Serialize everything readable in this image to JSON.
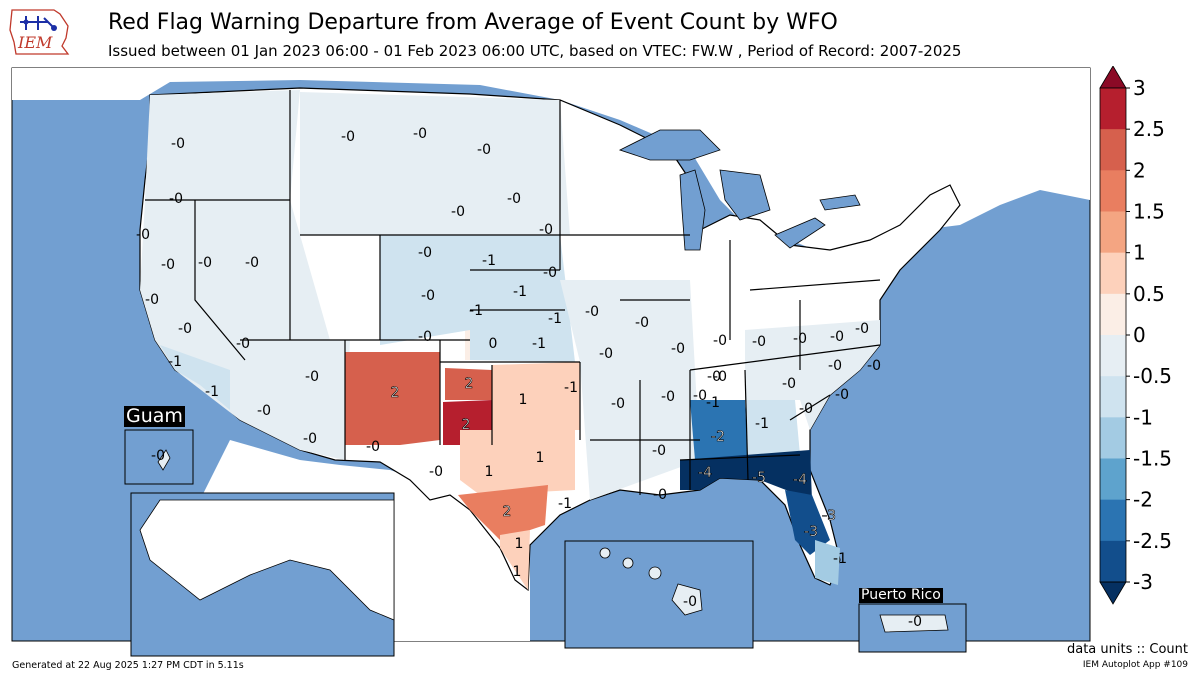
{
  "title": "Red Flag Warning Departure from Average of Event Count by WFO",
  "subtitle": "Issued between 01 Jan 2023 06:00 - 01 Feb 2023 06:00 UTC, based on VTEC: FW.W  , Period of Record: 2007-2025",
  "logo_text": "IEM",
  "legend": {
    "ticks": [
      "3",
      "2.5",
      "2",
      "1.5",
      "1",
      "0.5",
      "0",
      "-0.5",
      "-1",
      "-1.5",
      "-2",
      "-2.5",
      "-3"
    ],
    "colors": [
      "#8b0a26",
      "#b61f2e",
      "#d6604d",
      "#e97e60",
      "#f4a582",
      "#fdd1bb",
      "#fbeee6",
      "#e6eef3",
      "#cfe3ef",
      "#a3cbe3",
      "#5ea3cd",
      "#2b74b2",
      "#124e8c",
      "#053061"
    ],
    "units": "data units :: Count"
  },
  "insets": {
    "guam": "Guam",
    "puerto_rico": "Puerto Rico"
  },
  "footer": {
    "generated": "Generated at 22 Aug 2025 1:27 PM CDT in 5.11s",
    "app": "IEM Autoplot App #109"
  },
  "wfo_values": [
    {
      "id": "pqr",
      "label": "-0",
      "value": 0
    },
    {
      "id": "mfr",
      "label": "-0",
      "value": 0
    },
    {
      "id": "eka",
      "label": "-0",
      "value": 0
    },
    {
      "id": "sto",
      "label": "-0",
      "value": 0
    },
    {
      "id": "rev",
      "label": "-0",
      "value": 0
    },
    {
      "id": "lkn",
      "label": "-0",
      "value": 0
    },
    {
      "id": "mtr",
      "label": "-0",
      "value": 0
    },
    {
      "id": "hnx",
      "label": "-0",
      "value": 0
    },
    {
      "id": "vef",
      "label": "-0",
      "value": 0
    },
    {
      "id": "lox",
      "label": "-1",
      "value": -1
    },
    {
      "id": "sgx",
      "label": "-1",
      "value": -1
    },
    {
      "id": "psr",
      "label": "-0",
      "value": 0
    },
    {
      "id": "fgz",
      "label": "-0",
      "value": 0
    },
    {
      "id": "twc",
      "label": "-0",
      "value": 0
    },
    {
      "id": "tfx",
      "label": "-0",
      "value": 0
    },
    {
      "id": "ggw",
      "label": "-0",
      "value": 0
    },
    {
      "id": "bis",
      "label": "-0",
      "value": 0
    },
    {
      "id": "fgf",
      "label": "-0",
      "value": 0
    },
    {
      "id": "unr",
      "label": "-0",
      "value": 0
    },
    {
      "id": "abr",
      "label": "-0",
      "value": 0
    },
    {
      "id": "cys",
      "label": "-0",
      "value": 0
    },
    {
      "id": "fsd",
      "label": "-0",
      "value": 0
    },
    {
      "id": "lbf",
      "label": "-1",
      "value": -1
    },
    {
      "id": "oax",
      "label": "-0",
      "value": 0
    },
    {
      "id": "gid",
      "label": "-1",
      "value": -1
    },
    {
      "id": "bou",
      "label": "-0",
      "value": 0
    },
    {
      "id": "gld",
      "label": "-1",
      "value": -1
    },
    {
      "id": "pub",
      "label": "-1",
      "value": -1
    },
    {
      "id": "ddc",
      "label": "0",
      "value": 0
    },
    {
      "id": "ict",
      "label": "-1",
      "value": -1
    },
    {
      "id": "top",
      "label": "-0",
      "value": 0
    },
    {
      "id": "eax",
      "label": "-0",
      "value": 0
    },
    {
      "id": "sgf",
      "label": "-0",
      "value": 0
    },
    {
      "id": "lsx",
      "label": "-0",
      "value": 0
    },
    {
      "id": "pah",
      "label": "-0",
      "value": 0
    },
    {
      "id": "abq",
      "label": "2",
      "value": 2
    },
    {
      "id": "epz",
      "label": "-0",
      "value": 0
    },
    {
      "id": "ama",
      "label": "2",
      "value": 2
    },
    {
      "id": "lub",
      "label": "2",
      "value": 2
    },
    {
      "id": "oun",
      "label": "1",
      "value": 1
    },
    {
      "id": "tsa",
      "label": "-1",
      "value": -1
    },
    {
      "id": "lzk",
      "label": "-0",
      "value": 0
    },
    {
      "id": "maf",
      "label": "-0",
      "value": 0
    },
    {
      "id": "sjt",
      "label": "1",
      "value": 1
    },
    {
      "id": "fwd",
      "label": "1",
      "value": 1
    },
    {
      "id": "ewx",
      "label": "2",
      "value": 2
    },
    {
      "id": "hgx",
      "label": "-1",
      "value": -1
    },
    {
      "id": "crp",
      "label": "1",
      "value": 1
    },
    {
      "id": "bro",
      "label": "1",
      "value": 1
    },
    {
      "id": "shv",
      "label": "-0",
      "value": 0
    },
    {
      "id": "jan",
      "label": "-0",
      "value": 0
    },
    {
      "id": "lix",
      "label": "-0",
      "value": 0
    },
    {
      "id": "meg",
      "label": "-0",
      "value": 0
    },
    {
      "id": "ohx",
      "label": "-0",
      "value": 0
    },
    {
      "id": "hun",
      "label": "-1",
      "value": -1
    },
    {
      "id": "bmx",
      "label": "-2",
      "value": -2
    },
    {
      "id": "mob",
      "label": "-4",
      "value": -4
    },
    {
      "id": "tae",
      "label": "-5",
      "value": -5
    },
    {
      "id": "jax",
      "label": "-4",
      "value": -4
    },
    {
      "id": "ffc",
      "label": "-1",
      "value": -1
    },
    {
      "id": "mlb",
      "label": "-3",
      "value": -3
    },
    {
      "id": "tbw",
      "label": "-3",
      "value": -3
    },
    {
      "id": "mfl",
      "label": "-1",
      "value": -1
    },
    {
      "id": "mrx",
      "label": "-0",
      "value": 0
    },
    {
      "id": "gsp",
      "label": "-0",
      "value": 0
    },
    {
      "id": "cae",
      "label": "-0",
      "value": 0
    },
    {
      "id": "chs",
      "label": "-0",
      "value": 0
    },
    {
      "id": "rnk",
      "label": "-0",
      "value": 0
    },
    {
      "id": "rah",
      "label": "-0",
      "value": 0
    },
    {
      "id": "ilm",
      "label": "-0",
      "value": 0
    },
    {
      "id": "mhx",
      "label": "-0",
      "value": 0
    },
    {
      "id": "akq",
      "label": "-0",
      "value": 0
    },
    {
      "id": "jkl",
      "label": "-0",
      "value": 0
    },
    {
      "id": "hfo",
      "label": "-0",
      "value": 0
    },
    {
      "id": "gum",
      "label": "-0",
      "value": 0
    },
    {
      "id": "sju",
      "label": "-0",
      "value": 0
    }
  ]
}
